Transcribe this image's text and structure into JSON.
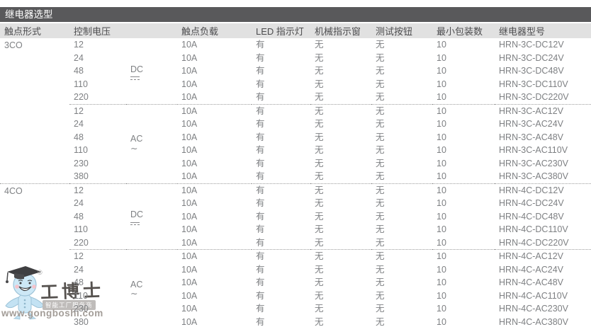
{
  "title": "继电器选型",
  "columns": [
    "触点形式",
    "控制电压",
    "触点负载",
    "LED 指示灯",
    "机械指示窗",
    "测试按钮",
    "最小包装数",
    "继电器型号"
  ],
  "groups": [
    {
      "contact_form": "3CO",
      "subgroups": [
        {
          "current_type": "DC",
          "symbol": "dc",
          "rows": [
            {
              "voltage": "12",
              "load": "10A",
              "led": "有",
              "mech_indicator": "无",
              "test_button": "无",
              "min_pack": "10",
              "model": "HRN-3C-DC12V"
            },
            {
              "voltage": "24",
              "load": "10A",
              "led": "有",
              "mech_indicator": "无",
              "test_button": "无",
              "min_pack": "10",
              "model": "HRN-3C-DC24V"
            },
            {
              "voltage": "48",
              "load": "10A",
              "led": "有",
              "mech_indicator": "无",
              "test_button": "无",
              "min_pack": "10",
              "model": "HRN-3C-DC48V"
            },
            {
              "voltage": "110",
              "load": "10A",
              "led": "有",
              "mech_indicator": "无",
              "test_button": "无",
              "min_pack": "10",
              "model": "HRN-3C-DC110V"
            },
            {
              "voltage": "220",
              "load": "10A",
              "led": "有",
              "mech_indicator": "无",
              "test_button": "无",
              "min_pack": "10",
              "model": "HRN-3C-DC220V"
            }
          ]
        },
        {
          "current_type": "AC",
          "symbol": "ac",
          "rows": [
            {
              "voltage": "12",
              "load": "10A",
              "led": "有",
              "mech_indicator": "无",
              "test_button": "无",
              "min_pack": "10",
              "model": "HRN-3C-AC12V"
            },
            {
              "voltage": "24",
              "load": "10A",
              "led": "有",
              "mech_indicator": "无",
              "test_button": "无",
              "min_pack": "10",
              "model": "HRN-3C-AC24V"
            },
            {
              "voltage": "48",
              "load": "10A",
              "led": "有",
              "mech_indicator": "无",
              "test_button": "无",
              "min_pack": "10",
              "model": "HRN-3C-AC48V"
            },
            {
              "voltage": "110",
              "load": "10A",
              "led": "有",
              "mech_indicator": "无",
              "test_button": "无",
              "min_pack": "10",
              "model": "HRN-3C-AC110V"
            },
            {
              "voltage": "230",
              "load": "10A",
              "led": "有",
              "mech_indicator": "无",
              "test_button": "无",
              "min_pack": "10",
              "model": "HRN-3C-AC230V"
            },
            {
              "voltage": "380",
              "load": "10A",
              "led": "有",
              "mech_indicator": "无",
              "test_button": "无",
              "min_pack": "10",
              "model": "HRN-3C-AC380V"
            }
          ]
        }
      ]
    },
    {
      "contact_form": "4CO",
      "subgroups": [
        {
          "current_type": "DC",
          "symbol": "dc",
          "rows": [
            {
              "voltage": "12",
              "load": "10A",
              "led": "有",
              "mech_indicator": "无",
              "test_button": "无",
              "min_pack": "10",
              "model": "HRN-4C-DC12V"
            },
            {
              "voltage": "24",
              "load": "10A",
              "led": "有",
              "mech_indicator": "无",
              "test_button": "无",
              "min_pack": "10",
              "model": "HRN-4C-DC24V"
            },
            {
              "voltage": "48",
              "load": "10A",
              "led": "有",
              "mech_indicator": "无",
              "test_button": "无",
              "min_pack": "10",
              "model": "HRN-4C-DC48V"
            },
            {
              "voltage": "110",
              "load": "10A",
              "led": "有",
              "mech_indicator": "无",
              "test_button": "无",
              "min_pack": "10",
              "model": "HRN-4C-DC110V"
            },
            {
              "voltage": "220",
              "load": "10A",
              "led": "有",
              "mech_indicator": "无",
              "test_button": "无",
              "min_pack": "10",
              "model": "HRN-4C-DC220V"
            }
          ]
        },
        {
          "current_type": "AC",
          "symbol": "ac",
          "rows": [
            {
              "voltage": "12",
              "load": "10A",
              "led": "有",
              "mech_indicator": "无",
              "test_button": "无",
              "min_pack": "10",
              "model": "HRN-4C-AC12V"
            },
            {
              "voltage": "24",
              "load": "10A",
              "led": "有",
              "mech_indicator": "无",
              "test_button": "无",
              "min_pack": "10",
              "model": "HRN-4C-AC24V"
            },
            {
              "voltage": "48",
              "load": "10A",
              "led": "有",
              "mech_indicator": "无",
              "test_button": "无",
              "min_pack": "10",
              "model": "HRN-4C-AC48V"
            },
            {
              "voltage": "110",
              "load": "10A",
              "led": "有",
              "mech_indicator": "无",
              "test_button": "无",
              "min_pack": "10",
              "model": "HRN-4C-AC110V"
            },
            {
              "voltage": "230",
              "load": "10A",
              "led": "有",
              "mech_indicator": "无",
              "test_button": "无",
              "min_pack": "10",
              "model": "HRN-4C-AC230V"
            },
            {
              "voltage": "380",
              "load": "10A",
              "led": "有",
              "mech_indicator": "无",
              "test_button": "无",
              "min_pack": "10",
              "model": "HRN-4C-AC380V"
            }
          ]
        }
      ]
    }
  ],
  "watermark": {
    "brand": "工博士",
    "registered": "®",
    "tagline": "智能工厂服务商",
    "url": "www.gongboshi.com",
    "colors": {
      "mascot_blue": "#c3e2f3",
      "cap_dark": "#3f3f41",
      "text_gray": "#a39d98"
    }
  }
}
